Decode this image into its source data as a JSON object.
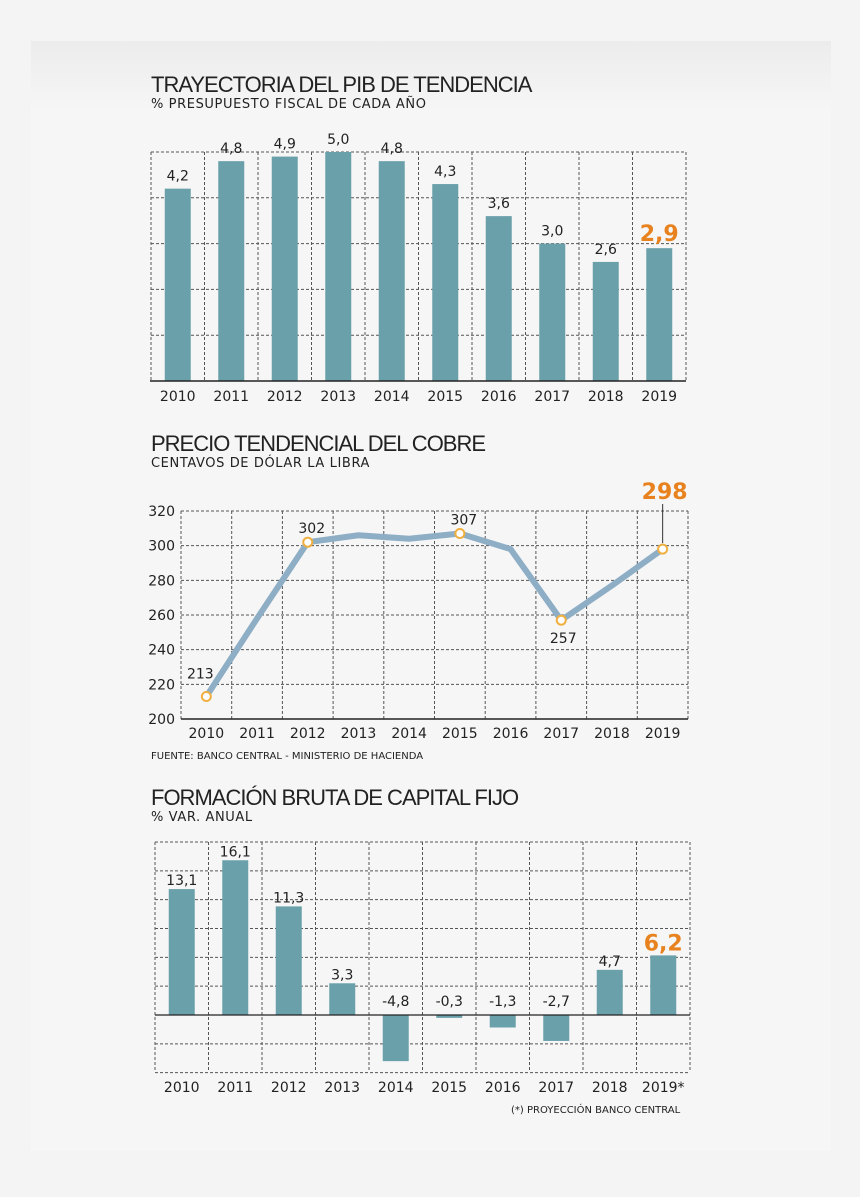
{
  "chart_data": [
    {
      "type": "bar",
      "title": "TRAYECTORIA DEL PIB DE TENDENCIA",
      "subtitle": "% PRESUPUESTO FISCAL DE CADA AÑO",
      "categories": [
        "2010",
        "2011",
        "2012",
        "2013",
        "2014",
        "2015",
        "2016",
        "2017",
        "2018",
        "2019"
      ],
      "values": [
        4.2,
        4.8,
        4.9,
        5.0,
        4.8,
        4.3,
        3.6,
        3.0,
        2.6,
        2.9
      ],
      "labels": [
        "4,2",
        "4,8",
        "4,9",
        "5,0",
        "4,8",
        "4,3",
        "3,6",
        "3,0",
        "2,6",
        "2,9"
      ],
      "highlight_index": 9,
      "ylim": [
        0,
        5
      ],
      "grid": true
    },
    {
      "type": "line",
      "title": "PRECIO TENDENCIAL DEL COBRE",
      "subtitle": "CENTAVOS DE DÓLAR LA LIBRA",
      "categories": [
        "2010",
        "2011",
        "2012",
        "2013",
        "2014",
        "2015",
        "2016",
        "2017",
        "2018",
        "2019"
      ],
      "values": [
        213,
        258,
        302,
        306,
        304,
        307,
        298,
        257,
        277,
        298
      ],
      "point_labels": [
        {
          "index": 0,
          "text": "213"
        },
        {
          "index": 2,
          "text": "302"
        },
        {
          "index": 5,
          "text": "307"
        },
        {
          "index": 7,
          "text": "257"
        },
        {
          "index": 9,
          "text": "298"
        }
      ],
      "highlight_index": 9,
      "yticks": [
        "200",
        "220",
        "240",
        "260",
        "280",
        "300",
        "320"
      ],
      "ylim": [
        200,
        320
      ],
      "grid": true,
      "source": "FUENTE: BANCO CENTRAL - MINISTERIO DE HACIENDA"
    },
    {
      "type": "bar",
      "title": "FORMACIÓN BRUTA DE CAPITAL FIJO",
      "subtitle": "% VAR. ANUAL",
      "categories": [
        "2010",
        "2011",
        "2012",
        "2013",
        "2014",
        "2015",
        "2016",
        "2017",
        "2018",
        "2019*"
      ],
      "values": [
        13.1,
        16.1,
        11.3,
        3.3,
        -4.8,
        -0.3,
        -1.3,
        -2.7,
        4.7,
        6.2
      ],
      "labels": [
        "13,1",
        "16,1",
        "11,3",
        "3,3",
        "-4,8",
        "-0,3",
        "-1,3",
        "-2,7",
        "4,7",
        "6,2"
      ],
      "highlight_index": 9,
      "ylim": [
        -6,
        18
      ],
      "grid": true,
      "footnote": "(*) PROYECCIÓN BANCO CENTRAL"
    }
  ],
  "colors": {
    "bar": "#6aa0aa",
    "line": "#8eaec6",
    "highlight": "#e8821e",
    "marker_fill": "#ffffff",
    "marker_stroke": "#f0b040",
    "grid": "#555555",
    "text": "#222222"
  }
}
